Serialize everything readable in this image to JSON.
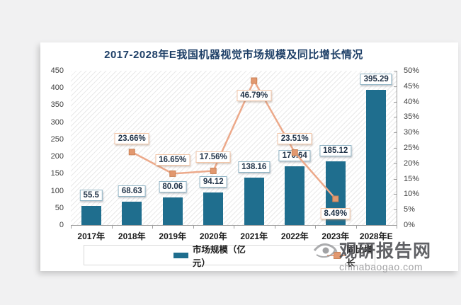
{
  "title": "2017-2028年E我国机器视觉市场规模及同比增长情况",
  "legend": {
    "items": [
      {
        "label": "市场规模（亿元）",
        "type": "bar"
      },
      {
        "label": "同比增长",
        "type": "line"
      }
    ]
  },
  "watermark": {
    "site_name": "观研报告网",
    "domain": "chinabaogao.com"
  },
  "colors": {
    "bar": "#1F6E8E",
    "line": "#ECA98A",
    "marker": "#E2986F",
    "value_label_border": "#8FB3C4",
    "pct_label_border": "#F2C6A8",
    "title": "#1F4068"
  },
  "chart_data": {
    "type": "bar+line combo",
    "title": "2017-2028年E我国机器视觉市场规模及同比增长情况",
    "categories": [
      "2017年",
      "2018年",
      "2019年",
      "2020年",
      "2021年",
      "2022年",
      "2023年",
      "2028年E"
    ],
    "series": [
      {
        "name": "市场规模（亿元）",
        "type": "bar",
        "axis": "left",
        "values": [
          55.5,
          68.63,
          80.06,
          94.12,
          138.16,
          170.64,
          185.12,
          395.29
        ]
      },
      {
        "name": "同比增长",
        "type": "line",
        "axis": "right",
        "unit": "%",
        "x_categories": [
          "2018年",
          "2019年",
          "2020年",
          "2021年",
          "2022年",
          "2023年"
        ],
        "values": [
          23.66,
          16.65,
          17.56,
          46.79,
          23.51,
          8.49
        ],
        "label_side": [
          "above",
          "above",
          "above",
          "below",
          "above",
          "below"
        ]
      }
    ],
    "left_axis": {
      "min": 0,
      "max": 450,
      "step": 50,
      "ticks": [
        "0",
        "50",
        "100",
        "150",
        "200",
        "250",
        "300",
        "350",
        "400",
        "450"
      ]
    },
    "right_axis": {
      "min": 0,
      "max": 50,
      "step": 5,
      "suffix": "%",
      "ticks": [
        "0%",
        "5%",
        "10%",
        "15%",
        "20%",
        "25%",
        "30%",
        "35%",
        "40%",
        "45%",
        "50%"
      ]
    },
    "grid": "hatched background, no gridlines",
    "legend_position": "bottom"
  }
}
